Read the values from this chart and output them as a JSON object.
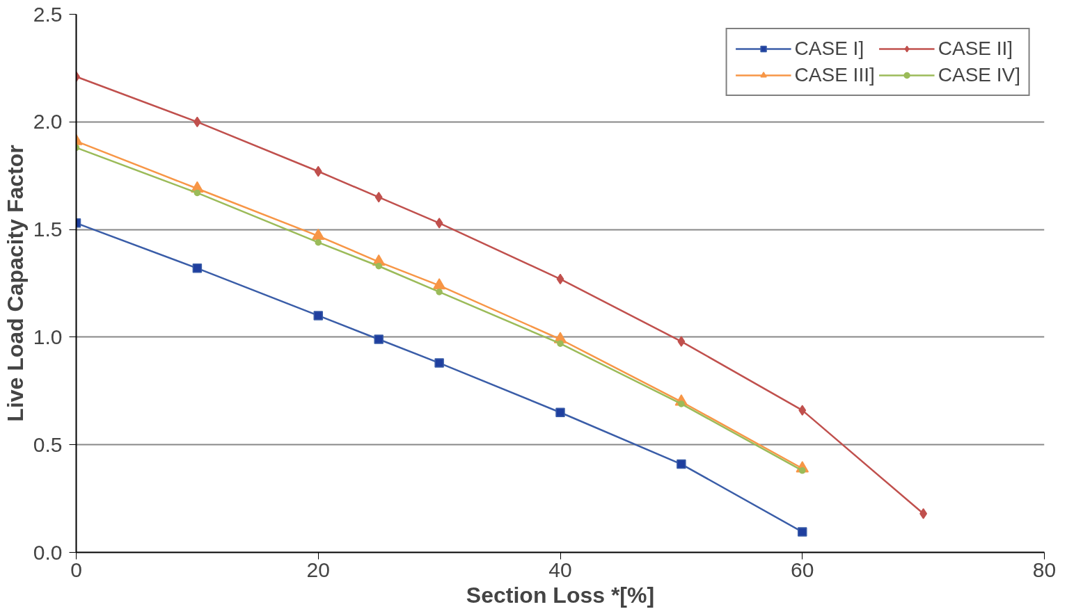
{
  "chart_data": {
    "type": "line",
    "xlabel": "Section Loss *[%]",
    "ylabel": "Live Load Capacity Factor",
    "xlim": [
      0,
      80
    ],
    "xticks": [
      0,
      20,
      40,
      60,
      80
    ],
    "ylim": [
      0,
      2.5
    ],
    "yticks": [
      {
        "value": 0,
        "label": "0.0"
      },
      {
        "value": 0.5,
        "label": "0.5"
      },
      {
        "value": 1,
        "label": "1.0"
      },
      {
        "value": 1.5,
        "label": "1.5"
      },
      {
        "value": 2,
        "label": "2.0"
      },
      {
        "value": 2.5,
        "label": "2.5"
      }
    ],
    "grid": "y",
    "legend": "top right",
    "series": [
      {
        "name": "CASE I]",
        "color": "#3a5da8",
        "marker": "square",
        "x": [
          0,
          10,
          20,
          25,
          30,
          40,
          50,
          60
        ],
        "values": [
          1.53,
          1.32,
          1.1,
          0.99,
          0.88,
          0.65,
          0.41,
          0.095
        ]
      },
      {
        "name": "CASE II]",
        "color": "#c0504d",
        "marker": "diamond",
        "x": [
          0,
          10,
          20,
          25,
          30,
          40,
          50,
          60,
          70
        ],
        "values": [
          2.21,
          2.0,
          1.77,
          1.65,
          1.53,
          1.27,
          0.98,
          0.66,
          0.18
        ]
      },
      {
        "name": "CASE III]",
        "color": "#f79646",
        "marker": "triangle",
        "x": [
          0,
          10,
          20,
          25,
          30,
          40,
          50,
          60
        ],
        "values": [
          1.91,
          1.69,
          1.47,
          1.35,
          1.24,
          0.99,
          0.7,
          0.39
        ]
      },
      {
        "name": "CASE IV]",
        "color": "#9bbb59",
        "marker": "circle",
        "x": [
          0,
          10,
          20,
          25,
          30,
          40,
          50,
          60
        ],
        "values": [
          1.88,
          1.67,
          1.44,
          1.33,
          1.21,
          0.97,
          0.69,
          0.38
        ]
      }
    ]
  }
}
